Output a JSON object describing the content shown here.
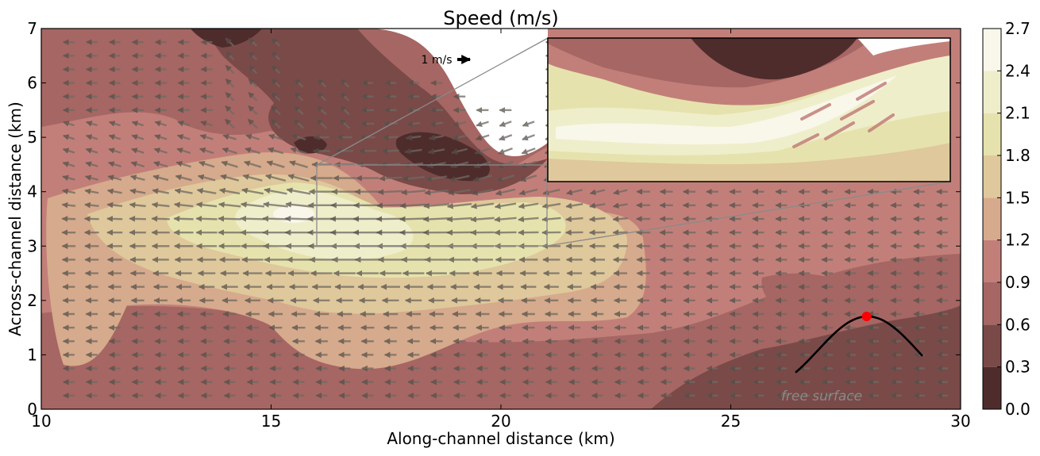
{
  "chart_data": {
    "type": "heatmap",
    "title": "Speed (m/s)",
    "xlabel": "Along-channel distance (km)",
    "ylabel": "Across-channel distance (km)",
    "xlim": [
      10,
      30
    ],
    "ylim": [
      0,
      7
    ],
    "xticks": [
      "10",
      "15",
      "20",
      "25",
      "30"
    ],
    "yticks": [
      "0",
      "1",
      "2",
      "3",
      "4",
      "5",
      "6",
      "7"
    ],
    "colorbar": {
      "ticks": [
        "0.0",
        "0.3",
        "0.6",
        "0.9",
        "1.2",
        "1.5",
        "1.8",
        "2.1",
        "2.4",
        "2.7"
      ],
      "levels": [
        0.0,
        0.3,
        0.6,
        0.9,
        1.2,
        1.5,
        1.8,
        2.1,
        2.4,
        2.7
      ],
      "colors": [
        "#4e2c2c",
        "#7a4a48",
        "#a66663",
        "#c27f79",
        "#d6aa8c",
        "#dfc89b",
        "#e6e2ad",
        "#efeecb",
        "#f8f7ea"
      ]
    },
    "scale_arrow_label": "1 m/s",
    "inset_zoom_region": {
      "x": [
        16,
        21
      ],
      "y": [
        3.0,
        4.5
      ]
    },
    "annotation": "free surface",
    "phase_marker": {
      "color": "#ff0000",
      "phase_fraction": 0.56
    },
    "grid": false
  }
}
